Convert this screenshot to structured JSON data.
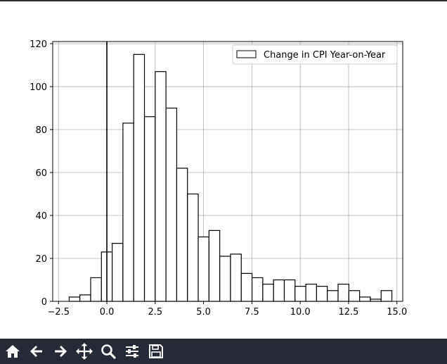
{
  "chart_data": {
    "type": "bar",
    "title": "",
    "xlabel": "",
    "ylabel": "",
    "xlim": [
      -2.5,
      15.0
    ],
    "ylim": [
      0,
      120
    ],
    "x_ticks": [
      -2.5,
      0.0,
      2.5,
      5.0,
      7.5,
      10.0,
      12.5,
      15.0
    ],
    "x_tick_labels": [
      "−2.5",
      "0.0",
      "2.5",
      "5.0",
      "7.5",
      "10.0",
      "12.5",
      "15.0"
    ],
    "y_ticks": [
      0,
      20,
      40,
      60,
      80,
      100,
      120
    ],
    "y_tick_labels": [
      "0",
      "20",
      "40",
      "60",
      "80",
      "100",
      "120"
    ],
    "grid": true,
    "legend_position": "top-right",
    "vertical_line_x": 0.0,
    "bin_width": 0.5563,
    "bin_edges_start": -1.95,
    "series": [
      {
        "name": "Change in CPI Year-on-Year",
        "color": "#ffffff",
        "edgecolor": "#000000",
        "values": [
          2,
          3,
          11,
          23,
          27,
          83,
          115,
          86,
          107,
          90,
          62,
          50,
          30,
          33,
          21,
          22,
          13,
          11,
          8,
          10,
          10,
          7,
          8,
          7,
          5,
          8,
          5,
          2,
          1,
          5
        ]
      }
    ]
  },
  "toolbar": {
    "buttons": [
      {
        "name": "home-button",
        "icon": "home-icon"
      },
      {
        "name": "back-button",
        "icon": "arrow-left-icon"
      },
      {
        "name": "forward-button",
        "icon": "arrow-right-icon"
      },
      {
        "name": "pan-button",
        "icon": "move-icon"
      },
      {
        "name": "zoom-button",
        "icon": "magnifier-icon"
      },
      {
        "name": "configure-subplots-button",
        "icon": "sliders-icon"
      },
      {
        "name": "save-button",
        "icon": "floppy-disk-icon"
      }
    ]
  }
}
